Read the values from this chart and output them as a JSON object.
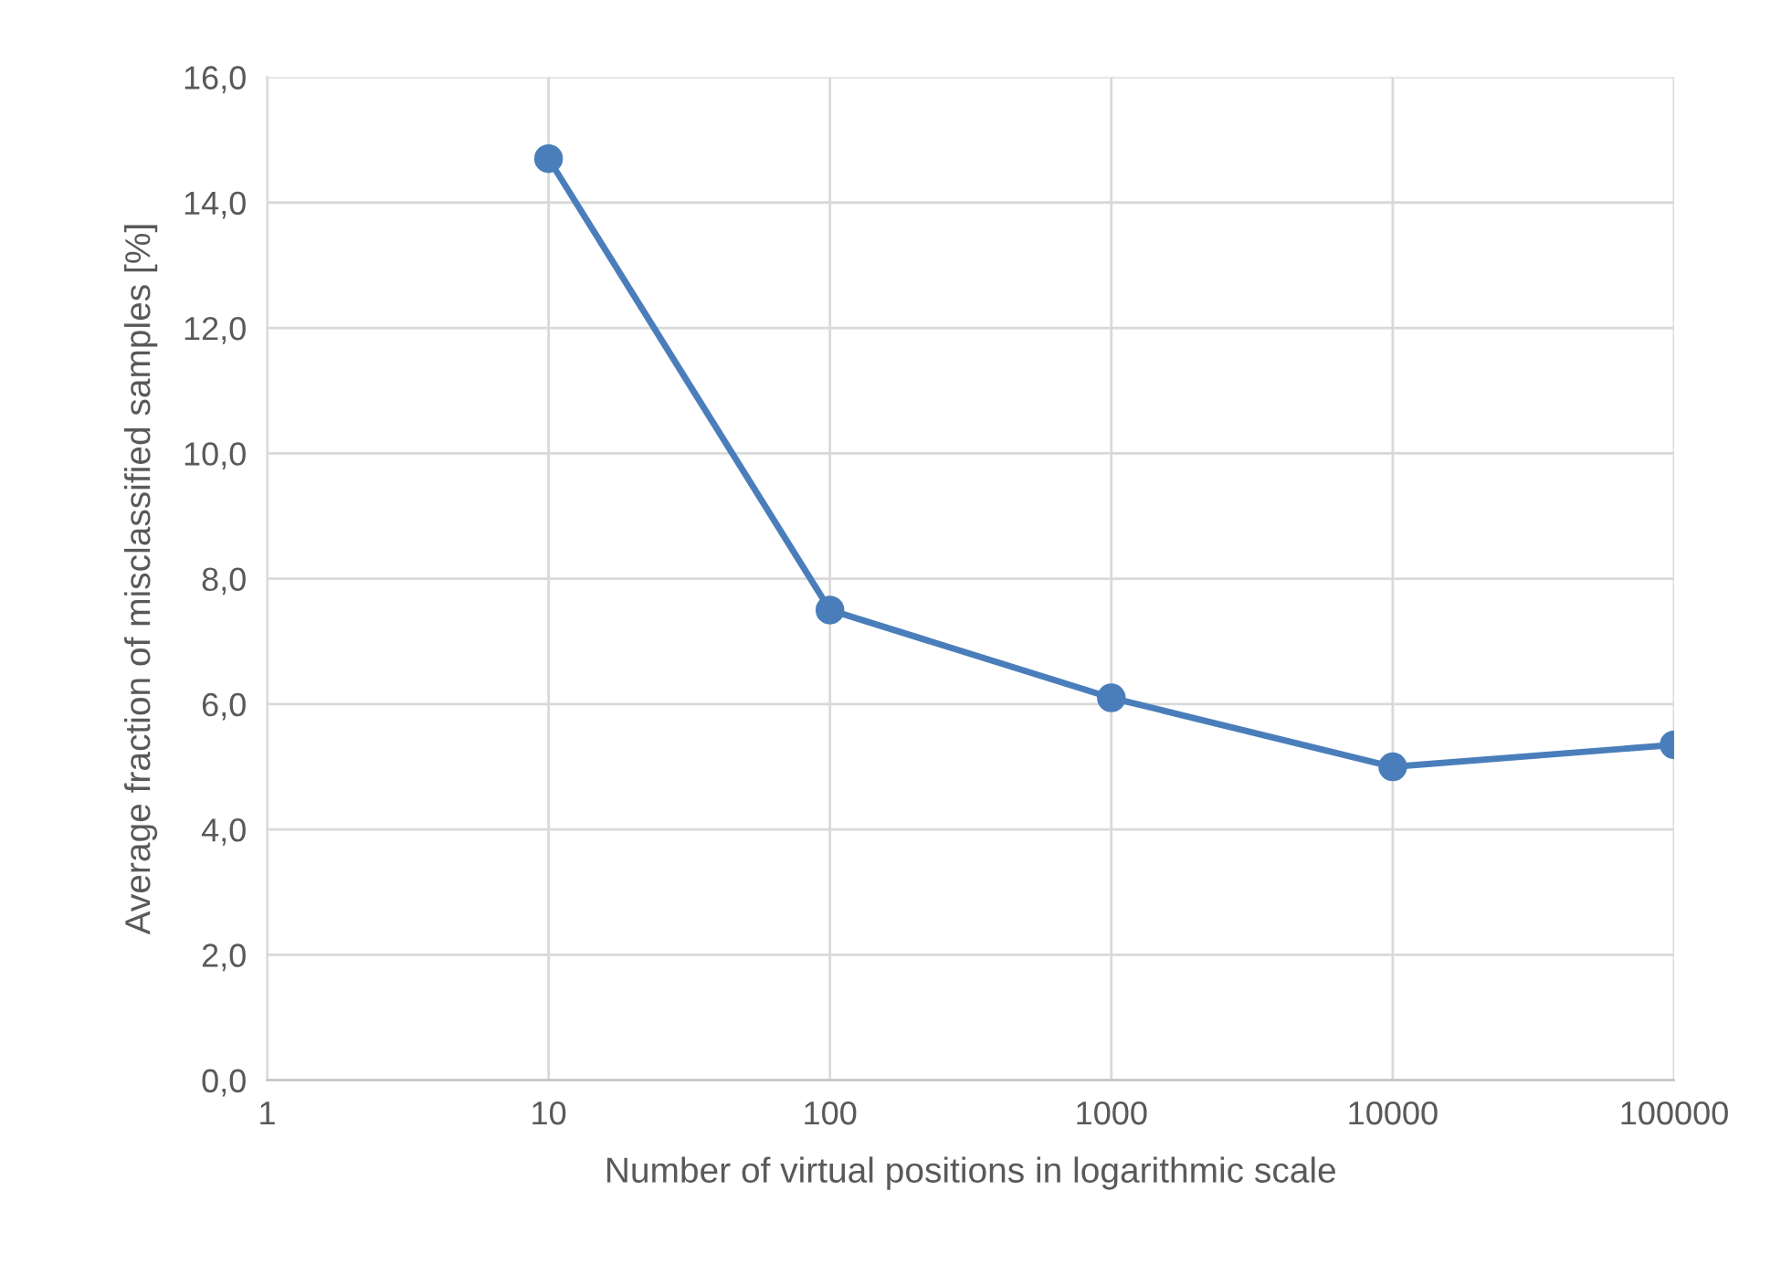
{
  "chart_data": {
    "type": "line",
    "xlabel": "Number of virtual positions in logarithmic scale",
    "ylabel": "Average fraction of misclassified samples [%]",
    "x": [
      10,
      100,
      1000,
      10000,
      100000
    ],
    "series": [
      {
        "color": "#4a7ebb",
        "values": [
          14.7,
          7.5,
          6.1,
          5.0,
          5.35
        ]
      }
    ],
    "log": "x",
    "xlim": [
      1,
      100000
    ],
    "xticks": [
      1,
      10,
      100,
      1000,
      10000,
      100000
    ],
    "ylim": [
      0,
      16
    ],
    "yticks": [
      {
        "value": 0,
        "label": "0,0"
      },
      {
        "value": 2,
        "label": "2,0"
      },
      {
        "value": 4,
        "label": "4,0"
      },
      {
        "value": 6,
        "label": "6,0"
      },
      {
        "value": 8,
        "label": "8,0"
      },
      {
        "value": 10,
        "label": "10,0"
      },
      {
        "value": 12,
        "label": "12,0"
      },
      {
        "value": 14,
        "label": "14,0"
      },
      {
        "value": 16,
        "label": "16,0"
      }
    ],
    "grid": true,
    "marker": "circle",
    "line_style": "solid"
  }
}
